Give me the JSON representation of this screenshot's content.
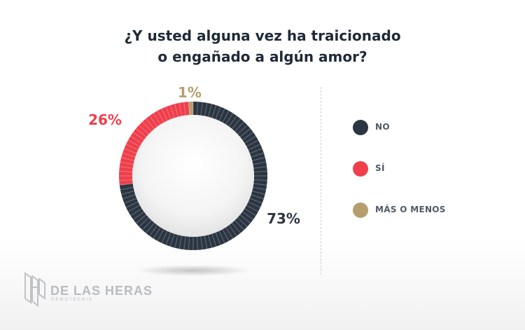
{
  "chart_data": {
    "type": "pie",
    "title_lines": [
      "¿Y usted alguna vez ha traicionado",
      "o engañado a algún amor?"
    ],
    "categories": [
      "NO",
      "SÍ",
      "MÁS O MENOS"
    ],
    "values": [
      73,
      26,
      1
    ],
    "value_labels": [
      "73%",
      "26%",
      "1%"
    ],
    "colors": [
      "#2c3642",
      "#ef3f4c",
      "#b79e6e"
    ],
    "legend": "right"
  },
  "brand": {
    "name": "DE LAS HERAS",
    "subtitle": "DEMOTECNIA"
  }
}
